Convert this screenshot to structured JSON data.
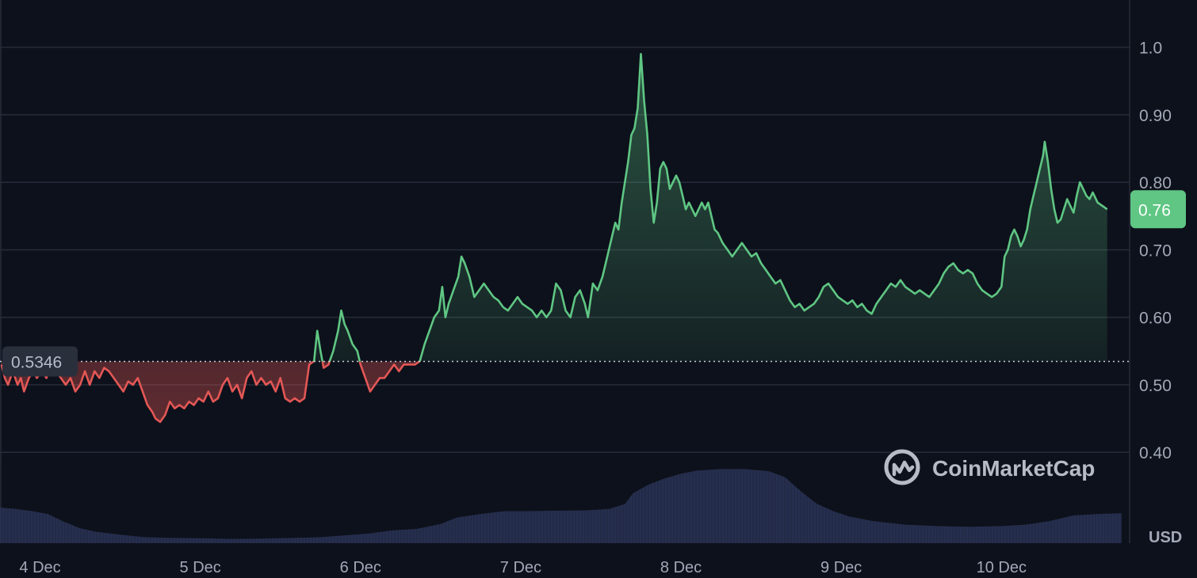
{
  "chart_data": {
    "type": "line",
    "currency_label": "USD",
    "baseline_value": 0.5346,
    "baseline_label": "0.5346",
    "current_value": 0.76,
    "current_label": "0.76",
    "ylim": [
      0.29,
      1.07
    ],
    "y_ticks": [
      {
        "value": 0.4,
        "label": "0.40"
      },
      {
        "value": 0.5,
        "label": "0.50"
      },
      {
        "value": 0.6,
        "label": "0.60"
      },
      {
        "value": 0.7,
        "label": "0.70"
      },
      {
        "value": 0.8,
        "label": "0.80"
      },
      {
        "value": 0.9,
        "label": "0.90"
      },
      {
        "value": 1.0,
        "label": "1.0"
      }
    ],
    "x_ticks": [
      {
        "value": 4,
        "label": "4 Dec"
      },
      {
        "value": 5,
        "label": "5 Dec"
      },
      {
        "value": 6,
        "label": "6 Dec"
      },
      {
        "value": 7,
        "label": "7 Dec"
      },
      {
        "value": 8,
        "label": "8 Dec"
      },
      {
        "value": 9,
        "label": "9 Dec"
      },
      {
        "value": 10,
        "label": "10 Dec"
      }
    ],
    "xlim": [
      3.75,
      10.8
    ],
    "price": [
      [
        3.76,
        0.53
      ],
      [
        3.78,
        0.51
      ],
      [
        3.8,
        0.5
      ],
      [
        3.83,
        0.52
      ],
      [
        3.86,
        0.5
      ],
      [
        3.88,
        0.51
      ],
      [
        3.9,
        0.49
      ],
      [
        3.93,
        0.51
      ],
      [
        3.96,
        0.52
      ],
      [
        3.98,
        0.51
      ],
      [
        4.01,
        0.52
      ],
      [
        4.04,
        0.51
      ],
      [
        4.07,
        0.53
      ],
      [
        4.1,
        0.52
      ],
      [
        4.13,
        0.51
      ],
      [
        4.16,
        0.5
      ],
      [
        4.19,
        0.51
      ],
      [
        4.22,
        0.49
      ],
      [
        4.25,
        0.5
      ],
      [
        4.28,
        0.52
      ],
      [
        4.31,
        0.5
      ],
      [
        4.34,
        0.52
      ],
      [
        4.37,
        0.51
      ],
      [
        4.4,
        0.525
      ],
      [
        4.43,
        0.52
      ],
      [
        4.46,
        0.51
      ],
      [
        4.49,
        0.5
      ],
      [
        4.52,
        0.49
      ],
      [
        4.55,
        0.505
      ],
      [
        4.58,
        0.5
      ],
      [
        4.61,
        0.51
      ],
      [
        4.64,
        0.49
      ],
      [
        4.67,
        0.47
      ],
      [
        4.7,
        0.46
      ],
      [
        4.72,
        0.45
      ],
      [
        4.75,
        0.445
      ],
      [
        4.78,
        0.455
      ],
      [
        4.81,
        0.475
      ],
      [
        4.84,
        0.465
      ],
      [
        4.87,
        0.47
      ],
      [
        4.9,
        0.465
      ],
      [
        4.93,
        0.475
      ],
      [
        4.96,
        0.47
      ],
      [
        4.99,
        0.48
      ],
      [
        5.02,
        0.475
      ],
      [
        5.05,
        0.49
      ],
      [
        5.08,
        0.475
      ],
      [
        5.11,
        0.48
      ],
      [
        5.14,
        0.5
      ],
      [
        5.17,
        0.51
      ],
      [
        5.2,
        0.49
      ],
      [
        5.23,
        0.5
      ],
      [
        5.26,
        0.48
      ],
      [
        5.29,
        0.51
      ],
      [
        5.32,
        0.52
      ],
      [
        5.35,
        0.5
      ],
      [
        5.38,
        0.51
      ],
      [
        5.41,
        0.5
      ],
      [
        5.44,
        0.505
      ],
      [
        5.47,
        0.49
      ],
      [
        5.5,
        0.51
      ],
      [
        5.53,
        0.48
      ],
      [
        5.56,
        0.475
      ],
      [
        5.59,
        0.48
      ],
      [
        5.62,
        0.475
      ],
      [
        5.65,
        0.48
      ],
      [
        5.68,
        0.53
      ],
      [
        5.71,
        0.535
      ],
      [
        5.73,
        0.58
      ],
      [
        5.75,
        0.55
      ],
      [
        5.77,
        0.525
      ],
      [
        5.8,
        0.53
      ],
      [
        5.83,
        0.55
      ],
      [
        5.86,
        0.58
      ],
      [
        5.88,
        0.61
      ],
      [
        5.9,
        0.59
      ],
      [
        5.92,
        0.58
      ],
      [
        5.95,
        0.56
      ],
      [
        5.98,
        0.55
      ],
      [
        6.0,
        0.53
      ],
      [
        6.03,
        0.51
      ],
      [
        6.06,
        0.49
      ],
      [
        6.09,
        0.5
      ],
      [
        6.12,
        0.51
      ],
      [
        6.15,
        0.51
      ],
      [
        6.18,
        0.52
      ],
      [
        6.21,
        0.53
      ],
      [
        6.24,
        0.52
      ],
      [
        6.27,
        0.53
      ],
      [
        6.3,
        0.53
      ],
      [
        6.34,
        0.53
      ],
      [
        6.37,
        0.535
      ],
      [
        6.4,
        0.56
      ],
      [
        6.43,
        0.58
      ],
      [
        6.46,
        0.6
      ],
      [
        6.49,
        0.61
      ],
      [
        6.51,
        0.645
      ],
      [
        6.53,
        0.6
      ],
      [
        6.55,
        0.62
      ],
      [
        6.58,
        0.64
      ],
      [
        6.61,
        0.66
      ],
      [
        6.63,
        0.69
      ],
      [
        6.65,
        0.68
      ],
      [
        6.68,
        0.66
      ],
      [
        6.71,
        0.63
      ],
      [
        6.74,
        0.64
      ],
      [
        6.77,
        0.65
      ],
      [
        6.8,
        0.64
      ],
      [
        6.83,
        0.63
      ],
      [
        6.86,
        0.625
      ],
      [
        6.89,
        0.615
      ],
      [
        6.92,
        0.61
      ],
      [
        6.95,
        0.62
      ],
      [
        6.98,
        0.63
      ],
      [
        7.01,
        0.62
      ],
      [
        7.04,
        0.615
      ],
      [
        7.07,
        0.61
      ],
      [
        7.1,
        0.6
      ],
      [
        7.13,
        0.61
      ],
      [
        7.16,
        0.6
      ],
      [
        7.19,
        0.61
      ],
      [
        7.22,
        0.65
      ],
      [
        7.25,
        0.64
      ],
      [
        7.28,
        0.61
      ],
      [
        7.31,
        0.6
      ],
      [
        7.34,
        0.63
      ],
      [
        7.37,
        0.64
      ],
      [
        7.4,
        0.62
      ],
      [
        7.42,
        0.6
      ],
      [
        7.45,
        0.65
      ],
      [
        7.48,
        0.64
      ],
      [
        7.51,
        0.66
      ],
      [
        7.54,
        0.69
      ],
      [
        7.57,
        0.72
      ],
      [
        7.59,
        0.74
      ],
      [
        7.61,
        0.73
      ],
      [
        7.63,
        0.77
      ],
      [
        7.65,
        0.8
      ],
      [
        7.67,
        0.83
      ],
      [
        7.69,
        0.87
      ],
      [
        7.71,
        0.88
      ],
      [
        7.73,
        0.91
      ],
      [
        7.75,
        0.99
      ],
      [
        7.77,
        0.92
      ],
      [
        7.79,
        0.87
      ],
      [
        7.81,
        0.79
      ],
      [
        7.83,
        0.74
      ],
      [
        7.85,
        0.77
      ],
      [
        7.87,
        0.82
      ],
      [
        7.89,
        0.83
      ],
      [
        7.91,
        0.82
      ],
      [
        7.93,
        0.79
      ],
      [
        7.95,
        0.8
      ],
      [
        7.97,
        0.81
      ],
      [
        7.99,
        0.8
      ],
      [
        8.01,
        0.78
      ],
      [
        8.03,
        0.76
      ],
      [
        8.05,
        0.77
      ],
      [
        8.07,
        0.76
      ],
      [
        8.09,
        0.75
      ],
      [
        8.11,
        0.76
      ],
      [
        8.13,
        0.77
      ],
      [
        8.15,
        0.76
      ],
      [
        8.17,
        0.77
      ],
      [
        8.19,
        0.75
      ],
      [
        8.21,
        0.73
      ],
      [
        8.23,
        0.725
      ],
      [
        8.26,
        0.71
      ],
      [
        8.29,
        0.7
      ],
      [
        8.32,
        0.69
      ],
      [
        8.35,
        0.7
      ],
      [
        8.38,
        0.71
      ],
      [
        8.41,
        0.7
      ],
      [
        8.44,
        0.69
      ],
      [
        8.47,
        0.695
      ],
      [
        8.5,
        0.68
      ],
      [
        8.53,
        0.67
      ],
      [
        8.56,
        0.66
      ],
      [
        8.59,
        0.65
      ],
      [
        8.62,
        0.655
      ],
      [
        8.65,
        0.64
      ],
      [
        8.68,
        0.625
      ],
      [
        8.71,
        0.615
      ],
      [
        8.74,
        0.62
      ],
      [
        8.77,
        0.61
      ],
      [
        8.8,
        0.615
      ],
      [
        8.83,
        0.62
      ],
      [
        8.86,
        0.63
      ],
      [
        8.89,
        0.645
      ],
      [
        8.92,
        0.65
      ],
      [
        8.95,
        0.64
      ],
      [
        8.98,
        0.63
      ],
      [
        9.01,
        0.625
      ],
      [
        9.04,
        0.62
      ],
      [
        9.07,
        0.625
      ],
      [
        9.1,
        0.615
      ],
      [
        9.13,
        0.62
      ],
      [
        9.16,
        0.61
      ],
      [
        9.19,
        0.605
      ],
      [
        9.22,
        0.62
      ],
      [
        9.25,
        0.63
      ],
      [
        9.28,
        0.64
      ],
      [
        9.31,
        0.65
      ],
      [
        9.34,
        0.645
      ],
      [
        9.37,
        0.655
      ],
      [
        9.4,
        0.645
      ],
      [
        9.43,
        0.64
      ],
      [
        9.46,
        0.635
      ],
      [
        9.49,
        0.64
      ],
      [
        9.52,
        0.635
      ],
      [
        9.55,
        0.63
      ],
      [
        9.58,
        0.64
      ],
      [
        9.61,
        0.65
      ],
      [
        9.64,
        0.665
      ],
      [
        9.67,
        0.675
      ],
      [
        9.7,
        0.68
      ],
      [
        9.73,
        0.67
      ],
      [
        9.76,
        0.665
      ],
      [
        9.79,
        0.67
      ],
      [
        9.82,
        0.665
      ],
      [
        9.85,
        0.65
      ],
      [
        9.88,
        0.64
      ],
      [
        9.91,
        0.635
      ],
      [
        9.94,
        0.63
      ],
      [
        9.97,
        0.635
      ],
      [
        10.0,
        0.645
      ],
      [
        10.02,
        0.69
      ],
      [
        10.04,
        0.7
      ],
      [
        10.06,
        0.72
      ],
      [
        10.08,
        0.73
      ],
      [
        10.1,
        0.72
      ],
      [
        10.12,
        0.705
      ],
      [
        10.14,
        0.715
      ],
      [
        10.16,
        0.73
      ],
      [
        10.18,
        0.76
      ],
      [
        10.2,
        0.78
      ],
      [
        10.22,
        0.8
      ],
      [
        10.24,
        0.82
      ],
      [
        10.26,
        0.84
      ],
      [
        10.27,
        0.86
      ],
      [
        10.29,
        0.83
      ],
      [
        10.31,
        0.79
      ],
      [
        10.33,
        0.76
      ],
      [
        10.35,
        0.74
      ],
      [
        10.37,
        0.745
      ],
      [
        10.39,
        0.76
      ],
      [
        10.41,
        0.775
      ],
      [
        10.43,
        0.765
      ],
      [
        10.45,
        0.755
      ],
      [
        10.47,
        0.78
      ],
      [
        10.49,
        0.8
      ],
      [
        10.51,
        0.79
      ],
      [
        10.53,
        0.78
      ],
      [
        10.55,
        0.775
      ],
      [
        10.57,
        0.785
      ],
      [
        10.6,
        0.77
      ],
      [
        10.63,
        0.765
      ],
      [
        10.66,
        0.76
      ]
    ],
    "volume": [
      [
        3.75,
        1.0
      ],
      [
        3.85,
        0.96
      ],
      [
        3.95,
        0.9
      ],
      [
        4.05,
        0.82
      ],
      [
        4.15,
        0.6
      ],
      [
        4.25,
        0.42
      ],
      [
        4.35,
        0.32
      ],
      [
        4.5,
        0.24
      ],
      [
        4.65,
        0.17
      ],
      [
        4.8,
        0.15
      ],
      [
        5.0,
        0.14
      ],
      [
        5.2,
        0.12
      ],
      [
        5.4,
        0.13
      ],
      [
        5.6,
        0.15
      ],
      [
        5.75,
        0.17
      ],
      [
        5.9,
        0.22
      ],
      [
        6.05,
        0.27
      ],
      [
        6.2,
        0.36
      ],
      [
        6.35,
        0.4
      ],
      [
        6.5,
        0.54
      ],
      [
        6.6,
        0.72
      ],
      [
        6.75,
        0.82
      ],
      [
        6.9,
        0.9
      ],
      [
        7.05,
        0.9
      ],
      [
        7.2,
        0.91
      ],
      [
        7.4,
        0.92
      ],
      [
        7.55,
        0.96
      ],
      [
        7.65,
        1.1
      ],
      [
        7.7,
        1.4
      ],
      [
        7.8,
        1.65
      ],
      [
        7.9,
        1.82
      ],
      [
        8.0,
        1.95
      ],
      [
        8.1,
        2.04
      ],
      [
        8.25,
        2.08
      ],
      [
        8.4,
        2.08
      ],
      [
        8.55,
        2.02
      ],
      [
        8.65,
        1.85
      ],
      [
        8.75,
        1.45
      ],
      [
        8.85,
        1.1
      ],
      [
        8.95,
        0.9
      ],
      [
        9.05,
        0.75
      ],
      [
        9.2,
        0.62
      ],
      [
        9.4,
        0.52
      ],
      [
        9.6,
        0.48
      ],
      [
        9.8,
        0.46
      ],
      [
        10.0,
        0.48
      ],
      [
        10.15,
        0.52
      ],
      [
        10.3,
        0.62
      ],
      [
        10.45,
        0.78
      ],
      [
        10.6,
        0.82
      ],
      [
        10.75,
        0.84
      ]
    ],
    "colors": {
      "up": "#5fc683",
      "down": "#e35755",
      "volume": "#2c3558",
      "grid": "#272c3a",
      "badge": "#5fc683"
    }
  },
  "brand": {
    "name": "CoinMarketCap"
  }
}
